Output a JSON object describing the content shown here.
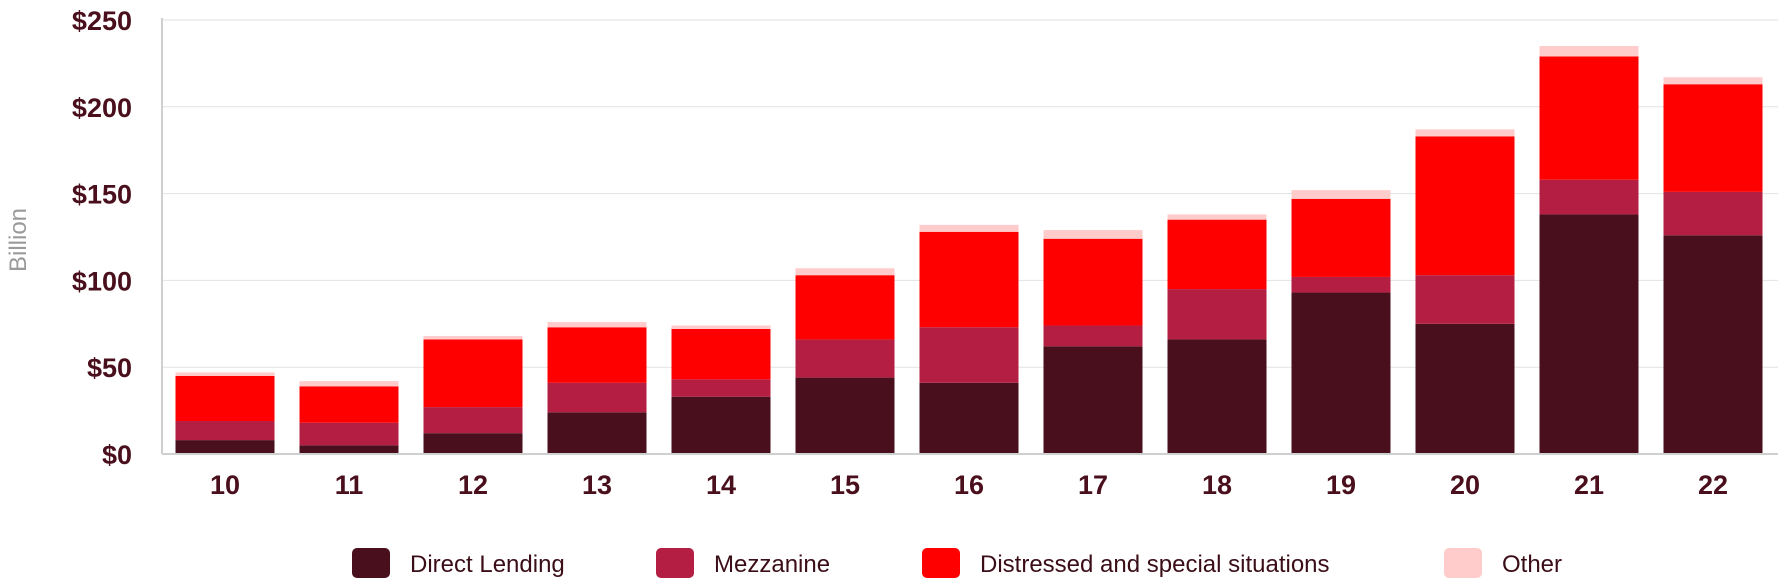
{
  "chart_data": {
    "type": "bar",
    "stacked": true,
    "categories": [
      "10",
      "11",
      "12",
      "13",
      "14",
      "15",
      "16",
      "17",
      "18",
      "19",
      "20",
      "21",
      "22"
    ],
    "series": [
      {
        "name": "Direct Lending",
        "color": "#4a0f1c",
        "values": [
          8,
          5,
          12,
          24,
          33,
          44,
          41,
          62,
          66,
          93,
          75,
          138,
          126
        ]
      },
      {
        "name": "Mezzanine",
        "color": "#b31e42",
        "values": [
          11,
          13,
          15,
          17,
          10,
          22,
          32,
          12,
          29,
          9,
          28,
          20,
          25
        ]
      },
      {
        "name": "Distressed and special situations",
        "color": "#ff0000",
        "values": [
          26,
          21,
          39,
          32,
          29,
          37,
          55,
          50,
          40,
          45,
          80,
          71,
          62
        ]
      },
      {
        "name": "Other",
        "color": "#ffcccb",
        "values": [
          2,
          3,
          2,
          3,
          2,
          4,
          4,
          5,
          3,
          5,
          4,
          6,
          4
        ]
      }
    ],
    "ylabel": "Billion",
    "ylim": [
      0,
      250
    ],
    "yticks": [
      0,
      50,
      100,
      150,
      200,
      250
    ],
    "ytick_labels": [
      "$0",
      "$50",
      "$100",
      "$150",
      "$200",
      "$250"
    ],
    "grid": true,
    "legend_position": "bottom"
  }
}
